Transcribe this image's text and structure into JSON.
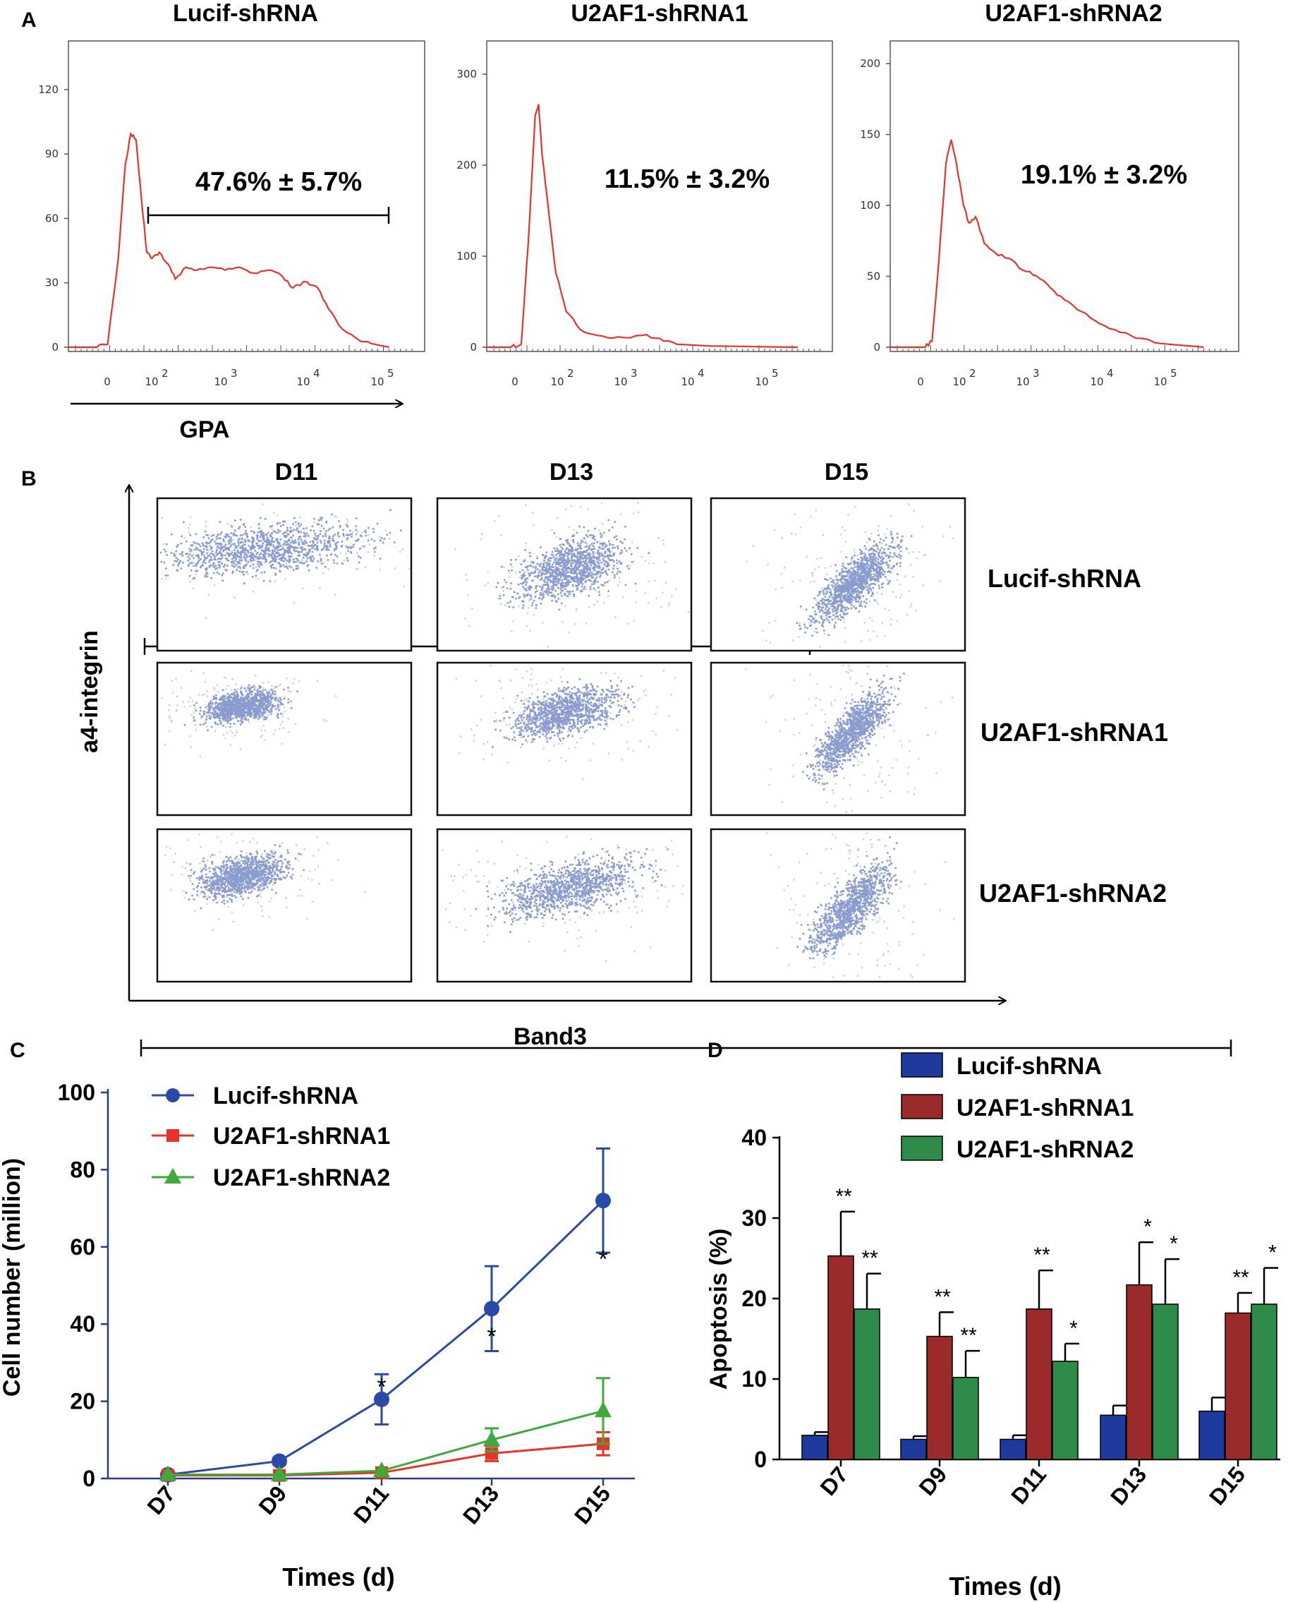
{
  "panels": {
    "a": "A",
    "b": "B",
    "c": "C",
    "d": "D"
  },
  "histograms": {
    "xlabel": "GPA",
    "x_ticks": [
      "0",
      "10",
      "10",
      "10",
      "10"
    ],
    "x_tick_exps": [
      "",
      "2",
      "3",
      "4",
      "5"
    ],
    "plots": [
      {
        "title": "Lucif-shRNA",
        "annotation": "47.6% ± 5.7%",
        "y_ticks": [
          "0",
          "30",
          "60",
          "90",
          "120"
        ],
        "ymax": 142
      },
      {
        "title": "U2AF1-shRNA1",
        "annotation": "11.5% ± 3.2%",
        "y_ticks": [
          "0",
          "100",
          "200",
          "300"
        ],
        "ymax": 335
      },
      {
        "title": "U2AF1-shRNA2",
        "annotation": "19.1% ± 3.2%",
        "y_ticks": [
          "0",
          "50",
          "100",
          "150",
          "200"
        ],
        "ymax": 215
      }
    ]
  },
  "scatter_grid": {
    "columns": [
      "D11",
      "D13",
      "D15"
    ],
    "rows": [
      "Lucif-shRNA",
      "U2AF1-shRNA1",
      "U2AF1-shRNA2"
    ],
    "ylabel": "a4-integrin",
    "xlabel": "Band3",
    "dot_color": "#2a4aa8"
  },
  "chart_data": [
    {
      "type": "line",
      "panel": "C",
      "xlabel": "Times (d)",
      "ylabel": "Cell number (million)",
      "categories": [
        "D7",
        "D9",
        "D11",
        "D13",
        "D15"
      ],
      "ylim": [
        0,
        100
      ],
      "y_ticks": [
        "0",
        "20",
        "40",
        "60",
        "80",
        "100"
      ],
      "series": [
        {
          "name": "Lucif-shRNA",
          "color": "#2a4aa8",
          "marker": "circle",
          "values": [
            1,
            4.5,
            20.5,
            44,
            72
          ],
          "errors": [
            0.5,
            0.8,
            6.5,
            11,
            13.5
          ]
        },
        {
          "name": "U2AF1-shRNA1",
          "color": "#e8332a",
          "marker": "square",
          "values": [
            0.8,
            0.8,
            1.5,
            6.5,
            9
          ],
          "errors": [
            0.3,
            0.3,
            0.5,
            2,
            3
          ]
        },
        {
          "name": "U2AF1-shRNA2",
          "color": "#3eaa3a",
          "marker": "triangle",
          "values": [
            1,
            1,
            2,
            10,
            17.5
          ],
          "errors": [
            0.3,
            0.3,
            0.5,
            3,
            8.5
          ]
        }
      ],
      "annotations": [
        "",
        "",
        "*",
        "*",
        "*"
      ]
    },
    {
      "type": "bar",
      "panel": "D",
      "xlabel": "Times (d)",
      "ylabel": "Apoptosis (%)",
      "categories": [
        "D7",
        "D9",
        "D11",
        "D13",
        "D15"
      ],
      "ylim": [
        0,
        40
      ],
      "y_ticks": [
        "0",
        "10",
        "20",
        "30",
        "40"
      ],
      "series": [
        {
          "name": "Lucif-shRNA",
          "color": "#1f3a9e",
          "values": [
            3,
            2.5,
            2.5,
            5.5,
            6
          ],
          "errors": [
            0.4,
            0.4,
            0.5,
            1.2,
            1.7
          ],
          "stars": [
            "",
            "",
            "",
            "",
            ""
          ]
        },
        {
          "name": "U2AF1-shRNA1",
          "color": "#9b2a2a",
          "values": [
            25.3,
            15.3,
            18.7,
            21.7,
            18.2
          ],
          "errors": [
            5.5,
            3,
            4.8,
            5.3,
            2.5
          ],
          "stars": [
            "**",
            "**",
            "**",
            "*",
            "**"
          ]
        },
        {
          "name": "U2AF1-shRNA2",
          "color": "#2e8b4a",
          "values": [
            18.7,
            10.2,
            12.2,
            19.3,
            19.3
          ],
          "errors": [
            4.4,
            3.3,
            2.2,
            5.6,
            4.5
          ],
          "stars": [
            "**",
            "**",
            "*",
            "*",
            "*"
          ]
        }
      ]
    }
  ]
}
